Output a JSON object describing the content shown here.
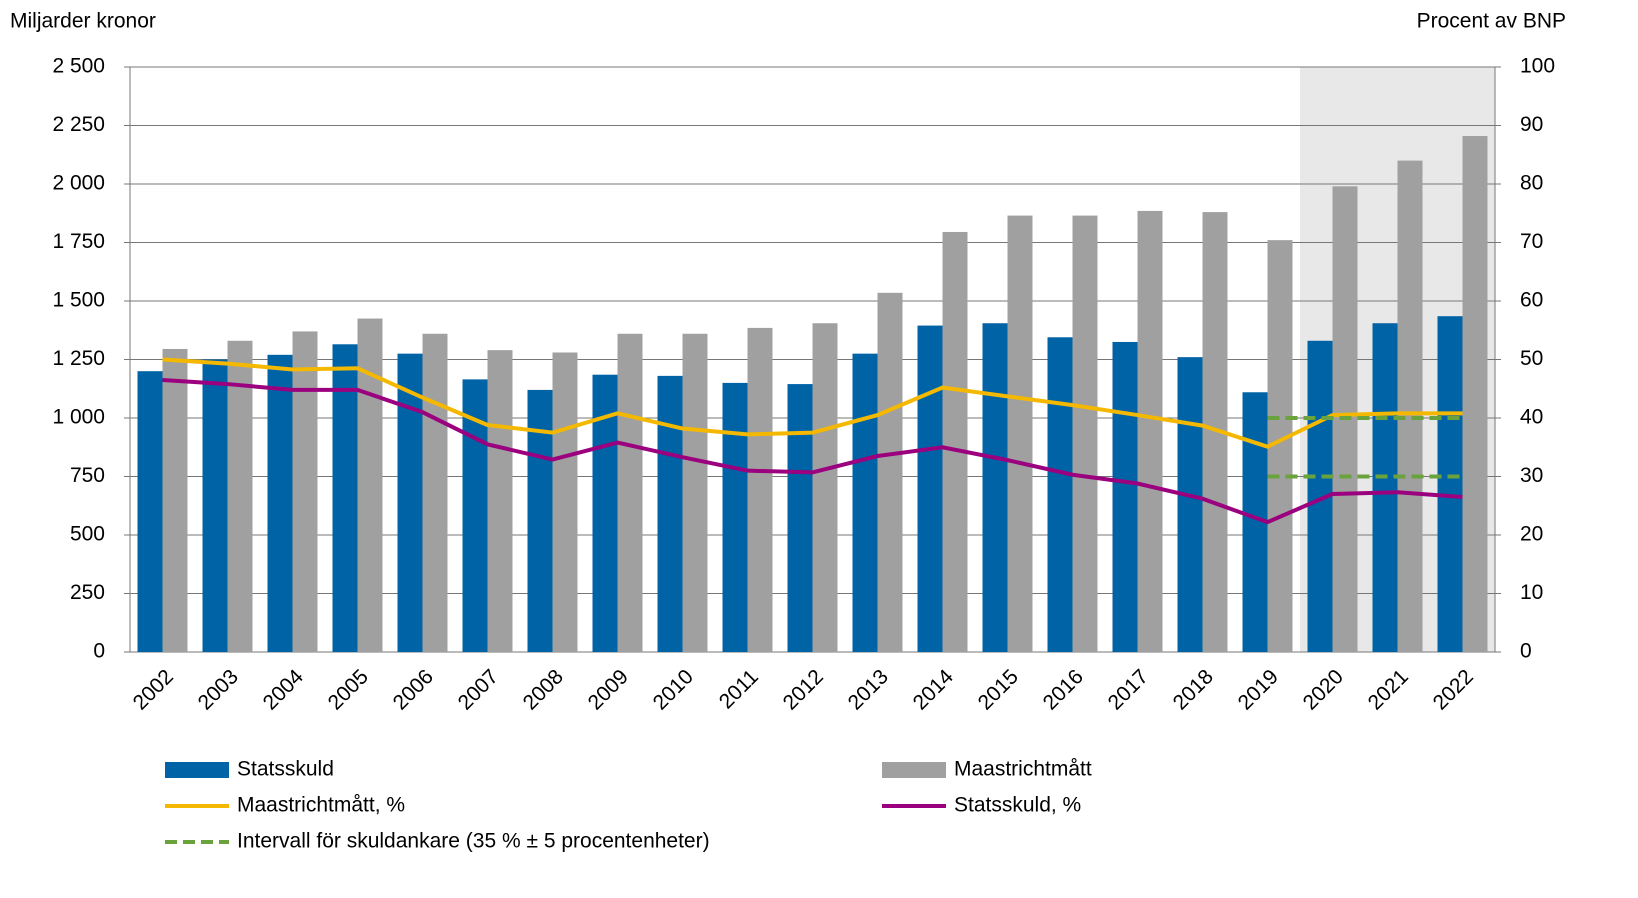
{
  "chart_data": {
    "type": "bar",
    "y_label": "Miljarder kronor",
    "y2_label": "Procent av BNP",
    "categories": [
      "2002",
      "2003",
      "2004",
      "2005",
      "2006",
      "2007",
      "2008",
      "2009",
      "2010",
      "2011",
      "2012",
      "2013",
      "2014",
      "2015",
      "2016",
      "2017",
      "2018",
      "2019",
      "2020",
      "2021",
      "2022"
    ],
    "series": [
      {
        "name": "Statsskuld",
        "type": "bar",
        "color": "#0063a6",
        "values": [
          1200,
          1250,
          1270,
          1315,
          1275,
          1165,
          1120,
          1185,
          1180,
          1150,
          1145,
          1275,
          1395,
          1405,
          1345,
          1325,
          1260,
          1110,
          1330,
          1405,
          1435
        ]
      },
      {
        "name": "Maastrichtmått",
        "type": "bar",
        "color": "#a0a0a0",
        "values": [
          1295,
          1330,
          1370,
          1425,
          1360,
          1290,
          1280,
          1360,
          1360,
          1385,
          1405,
          1535,
          1795,
          1865,
          1865,
          1885,
          1880,
          1760,
          1990,
          2100,
          2205
        ]
      },
      {
        "name": "Maastrichtmått, %",
        "type": "line",
        "axis": "y2",
        "color": "#f5b800",
        "values": [
          50,
          49.3,
          48.3,
          48.5,
          43.5,
          38.8,
          37.5,
          40.8,
          38.2,
          37.2,
          37.5,
          40.5,
          45.2,
          43.7,
          42.2,
          40.5,
          38.7,
          35.1,
          40.5,
          40.8,
          40.8
        ]
      },
      {
        "name": "Statsskuld, %",
        "type": "line",
        "axis": "y2",
        "color": "#9b007e",
        "values": [
          46.5,
          45.8,
          44.8,
          44.8,
          41,
          35.5,
          32.9,
          35.8,
          33.3,
          31,
          30.7,
          33.5,
          35,
          32.8,
          30.3,
          28.8,
          26.2,
          22.2,
          27,
          27.3,
          26.5
        ]
      },
      {
        "name": "Intervall för skuldankare (35 % ± 5 procentenheter)",
        "type": "band",
        "axis": "y2",
        "color": "#6aa33d",
        "upper": [
          null,
          null,
          null,
          null,
          null,
          null,
          null,
          null,
          null,
          null,
          null,
          null,
          null,
          null,
          null,
          null,
          null,
          40,
          40,
          40,
          40
        ],
        "lower": [
          null,
          null,
          null,
          null,
          null,
          null,
          null,
          null,
          null,
          null,
          null,
          null,
          null,
          null,
          null,
          null,
          null,
          30,
          30,
          30,
          30
        ]
      }
    ],
    "ylim": [
      0,
      2500
    ],
    "yticks": [
      0,
      250,
      500,
      750,
      {
        "value": 1000,
        "label": "1 000"
      },
      {
        "value": 1250,
        "label": "1 250"
      },
      {
        "value": 1500,
        "label": "1 500"
      },
      {
        "value": 1750,
        "label": "1 750"
      },
      {
        "value": 2000,
        "label": "2 000"
      },
      {
        "value": 2250,
        "label": "2 250"
      },
      {
        "value": 2500,
        "label": "2 500"
      }
    ],
    "y2lim": [
      0,
      100
    ],
    "y2ticks": [
      0,
      10,
      20,
      30,
      40,
      50,
      60,
      70,
      80,
      90,
      100
    ],
    "grid": true
  }
}
